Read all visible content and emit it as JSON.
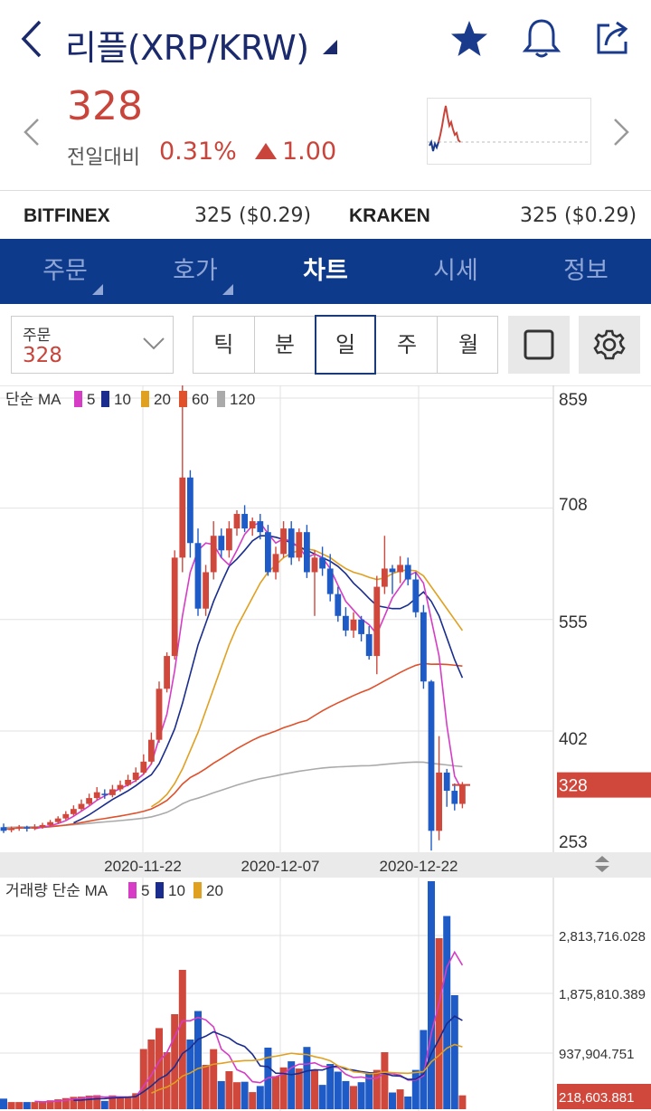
{
  "header": {
    "title": "리플(XRP/KRW)",
    "icons": [
      "back-icon",
      "dropdown-caret-icon",
      "star-icon",
      "bell-icon",
      "share-icon"
    ]
  },
  "price": {
    "current": "328",
    "change_label": "전일대비",
    "change_pct": "0.31%",
    "change_abs": "1.00",
    "color_up": "#c9443a"
  },
  "exchanges": [
    {
      "name": "BITFINEX",
      "value": "325 ($0.29)"
    },
    {
      "name": "KRAKEN",
      "value": "325 ($0.29)"
    }
  ],
  "nav": {
    "tabs": [
      "주문",
      "호가",
      "차트",
      "시세",
      "정보"
    ],
    "active": "차트",
    "accent": "#0e3a8c"
  },
  "controls": {
    "order_label": "주문",
    "order_value": "328",
    "periods": [
      "틱",
      "분",
      "일",
      "주",
      "월"
    ],
    "active_period": "일"
  },
  "chart_data": [
    {
      "type": "candlestick",
      "legend_title": "단순 MA",
      "ma_legend": [
        {
          "label": "5",
          "color": "#d63cc6"
        },
        {
          "label": "10",
          "color": "#1a2d8f"
        },
        {
          "label": "20",
          "color": "#e0a020"
        },
        {
          "label": "60",
          "color": "#e0502a"
        },
        {
          "label": "120",
          "color": "#aaaaaa"
        }
      ],
      "y_ticks": [
        "859",
        "708",
        "555",
        "402",
        "253"
      ],
      "current_price_label": "328",
      "x_labels": [
        "2020-11-22",
        "2020-12-07",
        "2020-12-22"
      ],
      "ylim": [
        253,
        859
      ],
      "candles": [
        [
          270,
          265,
          275,
          262
        ],
        [
          266,
          268,
          271,
          263
        ],
        [
          268,
          270,
          273,
          265
        ],
        [
          270,
          268,
          272,
          264
        ],
        [
          268,
          270,
          274,
          266
        ],
        [
          270,
          273,
          276,
          268
        ],
        [
          273,
          277,
          280,
          271
        ],
        [
          277,
          282,
          285,
          275
        ],
        [
          282,
          288,
          292,
          280
        ],
        [
          288,
          295,
          300,
          286
        ],
        [
          295,
          302,
          308,
          293
        ],
        [
          302,
          310,
          316,
          300
        ],
        [
          310,
          318,
          325,
          307
        ],
        [
          316,
          314,
          322,
          309
        ],
        [
          314,
          322,
          328,
          311
        ],
        [
          322,
          328,
          334,
          319
        ],
        [
          328,
          335,
          342,
          326
        ],
        [
          335,
          345,
          352,
          332
        ],
        [
          345,
          360,
          370,
          342
        ],
        [
          360,
          390,
          400,
          356
        ],
        [
          390,
          460,
          470,
          386
        ],
        [
          460,
          505,
          510,
          455
        ],
        [
          505,
          640,
          650,
          500
        ],
        [
          640,
          750,
          880,
          620
        ],
        [
          750,
          660,
          760,
          640
        ],
        [
          660,
          570,
          680,
          560
        ],
        [
          570,
          620,
          630,
          560
        ],
        [
          620,
          670,
          690,
          610
        ],
        [
          670,
          650,
          680,
          640
        ],
        [
          650,
          680,
          690,
          640
        ],
        [
          680,
          700,
          705,
          670
        ],
        [
          700,
          680,
          712,
          675
        ],
        [
          680,
          690,
          695,
          670
        ],
        [
          690,
          675,
          700,
          665
        ],
        [
          675,
          620,
          685,
          615
        ],
        [
          620,
          645,
          655,
          610
        ],
        [
          645,
          680,
          690,
          640
        ],
        [
          680,
          640,
          690,
          630
        ],
        [
          640,
          675,
          680,
          635
        ],
        [
          675,
          620,
          685,
          612
        ],
        [
          620,
          640,
          650,
          560
        ],
        [
          640,
          625,
          655,
          615
        ],
        [
          625,
          590,
          645,
          580
        ],
        [
          590,
          560,
          600,
          552
        ],
        [
          560,
          540,
          572,
          532
        ],
        [
          540,
          555,
          565,
          530
        ],
        [
          555,
          535,
          560,
          525
        ],
        [
          535,
          505,
          546,
          500
        ],
        [
          505,
          600,
          615,
          480
        ],
        [
          600,
          625,
          670,
          590
        ],
        [
          625,
          620,
          630,
          590
        ],
        [
          620,
          630,
          642,
          605
        ],
        [
          630,
          610,
          640,
          602
        ],
        [
          610,
          565,
          620,
          558
        ],
        [
          565,
          470,
          575,
          460
        ],
        [
          470,
          265,
          472,
          238
        ],
        [
          265,
          345,
          395,
          252
        ],
        [
          345,
          320,
          350,
          298
        ],
        [
          320,
          302,
          330,
          293
        ],
        [
          302,
          327,
          332,
          296
        ]
      ],
      "ma": {
        "5": [
          null,
          null,
          null,
          null,
          268,
          270,
          272,
          275,
          279,
          285,
          292,
          299,
          307,
          313,
          318,
          323,
          328,
          334,
          343,
          357,
          392,
          425,
          485,
          560,
          620,
          650,
          660,
          658,
          640,
          630,
          650,
          672,
          684,
          688,
          673,
          660,
          666,
          662,
          654,
          640,
          645,
          640,
          625,
          602,
          580,
          568,
          556,
          548,
          535,
          560,
          585,
          600,
          615,
          620,
          605,
          555,
          505,
          410,
          340,
          320
        ],
        "10": [
          null,
          null,
          null,
          null,
          null,
          null,
          null,
          null,
          null,
          276,
          281,
          287,
          294,
          301,
          308,
          314,
          320,
          327,
          335,
          342,
          357,
          380,
          405,
          440,
          480,
          520,
          550,
          580,
          605,
          628,
          638,
          650,
          663,
          670,
          670,
          668,
          665,
          660,
          655,
          650,
          645,
          640,
          635,
          628,
          618,
          605,
          595,
          584,
          574,
          572,
          570,
          570,
          575,
          584,
          593,
          580,
          560,
          530,
          500,
          475
        ],
        "20": [
          null,
          null,
          null,
          null,
          null,
          null,
          null,
          null,
          null,
          null,
          null,
          null,
          null,
          null,
          null,
          null,
          null,
          null,
          null,
          298,
          305,
          315,
          330,
          350,
          375,
          400,
          430,
          460,
          490,
          520,
          545,
          565,
          585,
          605,
          620,
          630,
          640,
          646,
          650,
          652,
          650,
          645,
          640,
          632,
          625,
          620,
          617,
          613,
          610,
          612,
          618,
          622,
          623,
          622,
          615,
          600,
          585,
          570,
          555,
          540
        ],
        "60": [
          null,
          null,
          null,
          null,
          null,
          null,
          null,
          null,
          null,
          null,
          null,
          null,
          null,
          null,
          null,
          null,
          null,
          null,
          null,
          null,
          null,
          null,
          null,
          null,
          null,
          null,
          null,
          null,
          null,
          null,
          null,
          null,
          null,
          null,
          null,
          null,
          null,
          null,
          null,
          null,
          null,
          null,
          null,
          null,
          null,
          null,
          null,
          null,
          null,
          null,
          null,
          null,
          null,
          null,
          null,
          null,
          null,
          null,
          null,
          null
        ],
        "120": []
      }
    },
    {
      "type": "bar",
      "legend_title": "거래량 단순 MA",
      "ma_legend": [
        {
          "label": "5",
          "color": "#d63cc6"
        },
        {
          "label": "10",
          "color": "#1a2d8f"
        },
        {
          "label": "20",
          "color": "#e0a020"
        }
      ],
      "y_ticks": [
        "2,813,716.028",
        "1,875,810.389",
        "937,904.751"
      ],
      "current_volume_label": "218,603.881",
      "ylim": [
        0,
        3600000
      ]
    }
  ]
}
